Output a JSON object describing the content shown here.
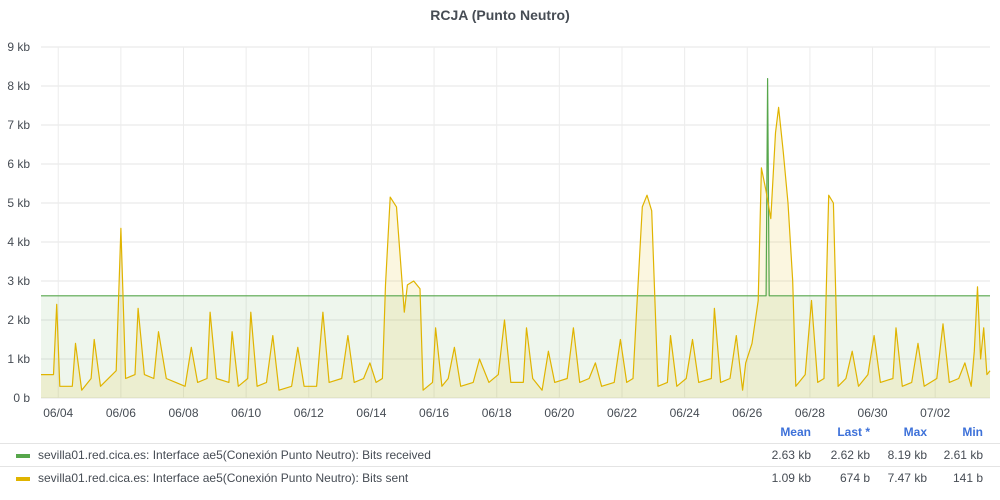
{
  "panel": {
    "title": "RCJA (Punto Neutro)"
  },
  "legend": {
    "headers": {
      "mean": "Mean",
      "last": "Last *",
      "max": "Max",
      "min": "Min"
    },
    "rows": [
      {
        "name": "sevilla01.red.cica.es: Interface ae5(Conexión Punto Neutro): Bits received",
        "color": "#56a64b",
        "mean": "2.63 kb",
        "last": "2.62 kb",
        "max": "8.19 kb",
        "min": "2.61 kb"
      },
      {
        "name": "sevilla01.red.cica.es: Interface ae5(Conexión Punto Neutro): Bits sent",
        "color": "#e0b400",
        "mean": "1.09 kb",
        "last": "674 b",
        "max": "7.47 kb",
        "min": "141 b"
      }
    ]
  },
  "chart_data": {
    "type": "area",
    "title": "RCJA (Punto Neutro)",
    "y_unit": "kb",
    "ylim": [
      0,
      9
    ],
    "yticks": [
      "0 b",
      "1 kb",
      "2 kb",
      "3 kb",
      "4 kb",
      "5 kb",
      "6 kb",
      "7 kb",
      "8 kb",
      "9 kb"
    ],
    "xlim_days": [
      0,
      30.3
    ],
    "xticks": [
      "06/04",
      "06/06",
      "06/08",
      "06/10",
      "06/12",
      "06/14",
      "06/16",
      "06/18",
      "06/20",
      "06/22",
      "06/24",
      "06/26",
      "06/28",
      "06/30",
      "07/02"
    ],
    "grid": true,
    "legend_position": "bottom",
    "series": [
      {
        "name": "sevilla01.red.cica.es: Interface ae5(Conexión Punto Neutro): Bits received",
        "color": "#56a64b",
        "points": [
          [
            0,
            2.62
          ],
          [
            23.15,
            2.62
          ],
          [
            23.2,
            8.19
          ],
          [
            23.25,
            2.62
          ],
          [
            30.3,
            2.62
          ]
        ]
      },
      {
        "name": "sevilla01.red.cica.es: Interface ae5(Conexión Punto Neutro): Bits sent",
        "color": "#e0b400",
        "points": [
          [
            0,
            0.6
          ],
          [
            0.4,
            0.6
          ],
          [
            0.5,
            2.4
          ],
          [
            0.6,
            0.3
          ],
          [
            1.0,
            0.3
          ],
          [
            1.1,
            1.4
          ],
          [
            1.3,
            0.2
          ],
          [
            1.6,
            0.5
          ],
          [
            1.7,
            1.5
          ],
          [
            1.9,
            0.3
          ],
          [
            2.4,
            0.7
          ],
          [
            2.55,
            4.35
          ],
          [
            2.7,
            0.5
          ],
          [
            3.0,
            0.6
          ],
          [
            3.1,
            2.3
          ],
          [
            3.3,
            0.6
          ],
          [
            3.6,
            0.5
          ],
          [
            3.75,
            1.7
          ],
          [
            4.0,
            0.5
          ],
          [
            4.6,
            0.3
          ],
          [
            4.8,
            1.3
          ],
          [
            5.0,
            0.4
          ],
          [
            5.3,
            0.5
          ],
          [
            5.4,
            2.2
          ],
          [
            5.6,
            0.5
          ],
          [
            6.0,
            0.4
          ],
          [
            6.1,
            1.7
          ],
          [
            6.3,
            0.3
          ],
          [
            6.6,
            0.5
          ],
          [
            6.7,
            2.2
          ],
          [
            6.9,
            0.3
          ],
          [
            7.2,
            0.4
          ],
          [
            7.4,
            1.6
          ],
          [
            7.6,
            0.2
          ],
          [
            8.0,
            0.3
          ],
          [
            8.2,
            1.3
          ],
          [
            8.4,
            0.3
          ],
          [
            8.8,
            0.3
          ],
          [
            9.0,
            2.2
          ],
          [
            9.2,
            0.4
          ],
          [
            9.6,
            0.5
          ],
          [
            9.8,
            1.6
          ],
          [
            10.0,
            0.4
          ],
          [
            10.3,
            0.5
          ],
          [
            10.5,
            0.9
          ],
          [
            10.7,
            0.4
          ],
          [
            10.9,
            0.5
          ],
          [
            11.0,
            2.9
          ],
          [
            11.15,
            5.15
          ],
          [
            11.35,
            4.9
          ],
          [
            11.6,
            2.2
          ],
          [
            11.7,
            2.9
          ],
          [
            11.9,
            3.0
          ],
          [
            12.1,
            2.8
          ],
          [
            12.2,
            0.2
          ],
          [
            12.5,
            0.4
          ],
          [
            12.6,
            1.8
          ],
          [
            12.8,
            0.3
          ],
          [
            13.0,
            0.5
          ],
          [
            13.2,
            1.3
          ],
          [
            13.4,
            0.3
          ],
          [
            13.8,
            0.4
          ],
          [
            14.0,
            1.0
          ],
          [
            14.3,
            0.4
          ],
          [
            14.6,
            0.6
          ],
          [
            14.8,
            2.0
          ],
          [
            15.0,
            0.4
          ],
          [
            15.4,
            0.4
          ],
          [
            15.5,
            1.8
          ],
          [
            15.7,
            0.5
          ],
          [
            16.0,
            0.2
          ],
          [
            16.2,
            1.2
          ],
          [
            16.4,
            0.4
          ],
          [
            16.8,
            0.5
          ],
          [
            17.0,
            1.8
          ],
          [
            17.2,
            0.4
          ],
          [
            17.5,
            0.5
          ],
          [
            17.7,
            0.9
          ],
          [
            17.9,
            0.3
          ],
          [
            18.3,
            0.4
          ],
          [
            18.5,
            1.5
          ],
          [
            18.7,
            0.4
          ],
          [
            18.9,
            0.5
          ],
          [
            19.0,
            2.0
          ],
          [
            19.2,
            4.9
          ],
          [
            19.35,
            5.2
          ],
          [
            19.5,
            4.8
          ],
          [
            19.7,
            0.3
          ],
          [
            20.0,
            0.4
          ],
          [
            20.1,
            1.6
          ],
          [
            20.3,
            0.3
          ],
          [
            20.6,
            0.5
          ],
          [
            20.8,
            1.5
          ],
          [
            21.0,
            0.4
          ],
          [
            21.4,
            0.5
          ],
          [
            21.5,
            2.3
          ],
          [
            21.7,
            0.4
          ],
          [
            22.0,
            0.5
          ],
          [
            22.2,
            1.6
          ],
          [
            22.4,
            0.2
          ],
          [
            22.5,
            0.9
          ],
          [
            22.7,
            1.4
          ],
          [
            22.9,
            2.5
          ],
          [
            23.0,
            5.9
          ],
          [
            23.15,
            5.3
          ],
          [
            23.3,
            4.6
          ],
          [
            23.45,
            6.8
          ],
          [
            23.55,
            7.45
          ],
          [
            23.7,
            6.3
          ],
          [
            23.85,
            5.0
          ],
          [
            24.0,
            3.0
          ],
          [
            24.1,
            0.3
          ],
          [
            24.4,
            0.6
          ],
          [
            24.6,
            2.5
          ],
          [
            24.8,
            0.4
          ],
          [
            25.0,
            0.5
          ],
          [
            25.15,
            5.2
          ],
          [
            25.3,
            5.0
          ],
          [
            25.45,
            0.3
          ],
          [
            25.7,
            0.5
          ],
          [
            25.9,
            1.2
          ],
          [
            26.1,
            0.3
          ],
          [
            26.4,
            0.6
          ],
          [
            26.6,
            1.6
          ],
          [
            26.8,
            0.4
          ],
          [
            27.2,
            0.5
          ],
          [
            27.3,
            1.8
          ],
          [
            27.5,
            0.3
          ],
          [
            27.8,
            0.4
          ],
          [
            28.0,
            1.4
          ],
          [
            28.2,
            0.3
          ],
          [
            28.6,
            0.5
          ],
          [
            28.8,
            1.9
          ],
          [
            29.0,
            0.4
          ],
          [
            29.3,
            0.5
          ],
          [
            29.5,
            0.9
          ],
          [
            29.7,
            0.3
          ],
          [
            29.8,
            1.2
          ],
          [
            29.9,
            2.85
          ],
          [
            30.0,
            1.0
          ],
          [
            30.1,
            1.8
          ],
          [
            30.2,
            0.6
          ],
          [
            30.3,
            0.7
          ]
        ]
      }
    ]
  }
}
